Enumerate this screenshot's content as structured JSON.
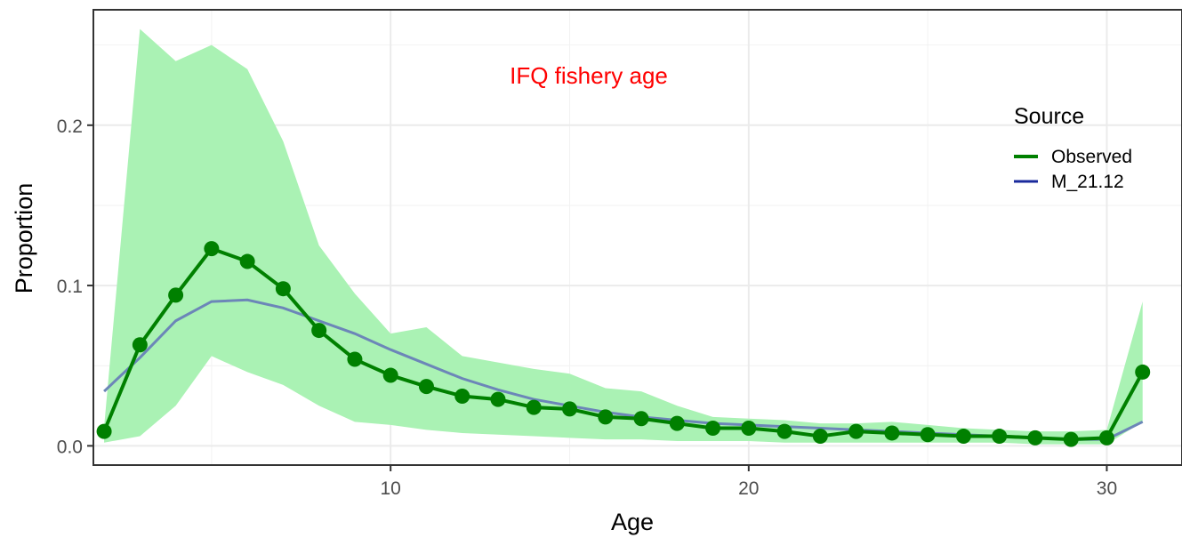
{
  "chart_data": {
    "type": "line",
    "title": "",
    "annotation": "IFQ fishery age",
    "xlabel": "Age",
    "ylabel": "Proportion",
    "xlim": [
      1.7,
      32.1
    ],
    "ylim": [
      -0.012,
      0.272
    ],
    "x_ticks": [
      10,
      20,
      30
    ],
    "y_ticks": [
      0.0,
      0.1,
      0.2
    ],
    "x_tick_labels": [
      "10",
      "20",
      "30"
    ],
    "y_tick_labels": [
      "0.0",
      "0.1",
      "0.2"
    ],
    "grid": true,
    "legend": {
      "title": "Source",
      "placement": "right",
      "entries": [
        "Observed",
        "M_21.12"
      ]
    },
    "x": [
      2,
      3,
      4,
      5,
      6,
      7,
      8,
      9,
      10,
      11,
      12,
      13,
      14,
      15,
      16,
      17,
      18,
      19,
      20,
      21,
      22,
      23,
      24,
      25,
      26,
      27,
      28,
      29,
      30,
      31
    ],
    "band": {
      "upper": [
        0.012,
        0.26,
        0.24,
        0.25,
        0.235,
        0.19,
        0.125,
        0.095,
        0.07,
        0.074,
        0.056,
        0.052,
        0.048,
        0.045,
        0.036,
        0.034,
        0.025,
        0.018,
        0.017,
        0.016,
        0.014,
        0.014,
        0.015,
        0.013,
        0.011,
        0.01,
        0.009,
        0.009,
        0.01,
        0.09
      ],
      "lower": [
        0.002,
        0.006,
        0.025,
        0.056,
        0.046,
        0.038,
        0.025,
        0.015,
        0.013,
        0.01,
        0.008,
        0.007,
        0.006,
        0.005,
        0.004,
        0.004,
        0.003,
        0.003,
        0.003,
        0.002,
        0.002,
        0.002,
        0.002,
        0.002,
        0.002,
        0.002,
        0.001,
        0.001,
        0.001,
        0.015
      ]
    },
    "series": [
      {
        "name": "Observed",
        "color": "#008000",
        "values": [
          0.009,
          0.063,
          0.094,
          0.123,
          0.115,
          0.098,
          0.072,
          0.054,
          0.044,
          0.037,
          0.031,
          0.029,
          0.024,
          0.023,
          0.018,
          0.017,
          0.014,
          0.011,
          0.011,
          0.009,
          0.006,
          0.009,
          0.008,
          0.007,
          0.006,
          0.006,
          0.005,
          0.004,
          0.005,
          0.046
        ]
      },
      {
        "name": "M_21.12",
        "color": "#6c86b8",
        "values": [
          0.034,
          0.055,
          0.078,
          0.09,
          0.091,
          0.086,
          0.078,
          0.07,
          0.06,
          0.051,
          0.042,
          0.035,
          0.029,
          0.025,
          0.021,
          0.018,
          0.016,
          0.014,
          0.013,
          0.012,
          0.011,
          0.01,
          0.009,
          0.008,
          0.007,
          0.006,
          0.005,
          0.004,
          0.004,
          0.015
        ]
      }
    ],
    "colors": {
      "band": "#aaf2b4",
      "observed": "#008000",
      "model": "#6c86b8",
      "legend_model": "#1a2a9c",
      "annotation": "#ff0000",
      "grid": "#ebebeb",
      "panel_border": "#333333"
    }
  }
}
